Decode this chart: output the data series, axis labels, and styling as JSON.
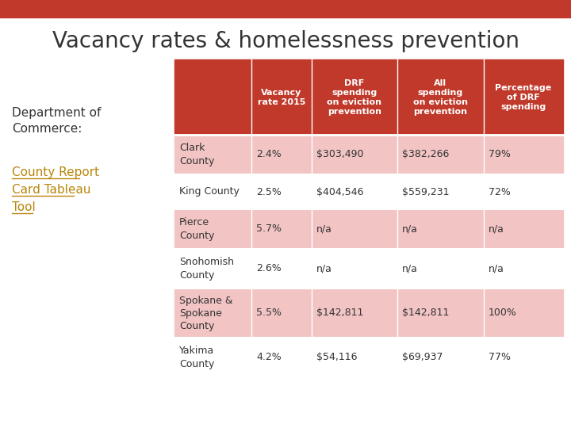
{
  "title": "Vacancy rates & homelessness prevention",
  "title_fontsize": 20,
  "title_color": "#333333",
  "top_bar_color": "#c0392b",
  "background_color": "#ffffff",
  "left_text_1": "Department of\nCommerce:",
  "left_link_text": "County Report\nCard Tableau\nTool",
  "left_link_color": "#b8860b",
  "header_bg": "#c0392b",
  "header_text_color": "#ffffff",
  "header_cols": [
    "Vacancy\nrate 2015",
    "DRF\nspending\non eviction\nprevention",
    "All\nspending\non eviction\nprevention",
    "Percentage\nof DRF\nspending"
  ],
  "row_bg_odd": "#f2c4c4",
  "row_bg_even": "#ffffff",
  "rows": [
    [
      "Clark\nCounty",
      "2.4%",
      "$303,490",
      "$382,266",
      "79%"
    ],
    [
      "King County",
      "2.5%",
      "$404,546",
      "$559,231",
      "72%"
    ],
    [
      "Pierce\nCounty",
      "5.7%",
      "n/a",
      "n/a",
      "n/a"
    ],
    [
      "Snohomish\nCounty",
      "2.6%",
      "n/a",
      "n/a",
      "n/a"
    ],
    [
      "Spokane &\nSpokane\nCounty",
      "5.5%",
      "$142,811",
      "$142,811",
      "100%"
    ],
    [
      "Yakima\nCounty",
      "4.2%",
      "$54,116",
      "$69,937",
      "77%"
    ]
  ],
  "text_color": "#333333",
  "text_fontsize": 9,
  "header_fontsize": 8
}
